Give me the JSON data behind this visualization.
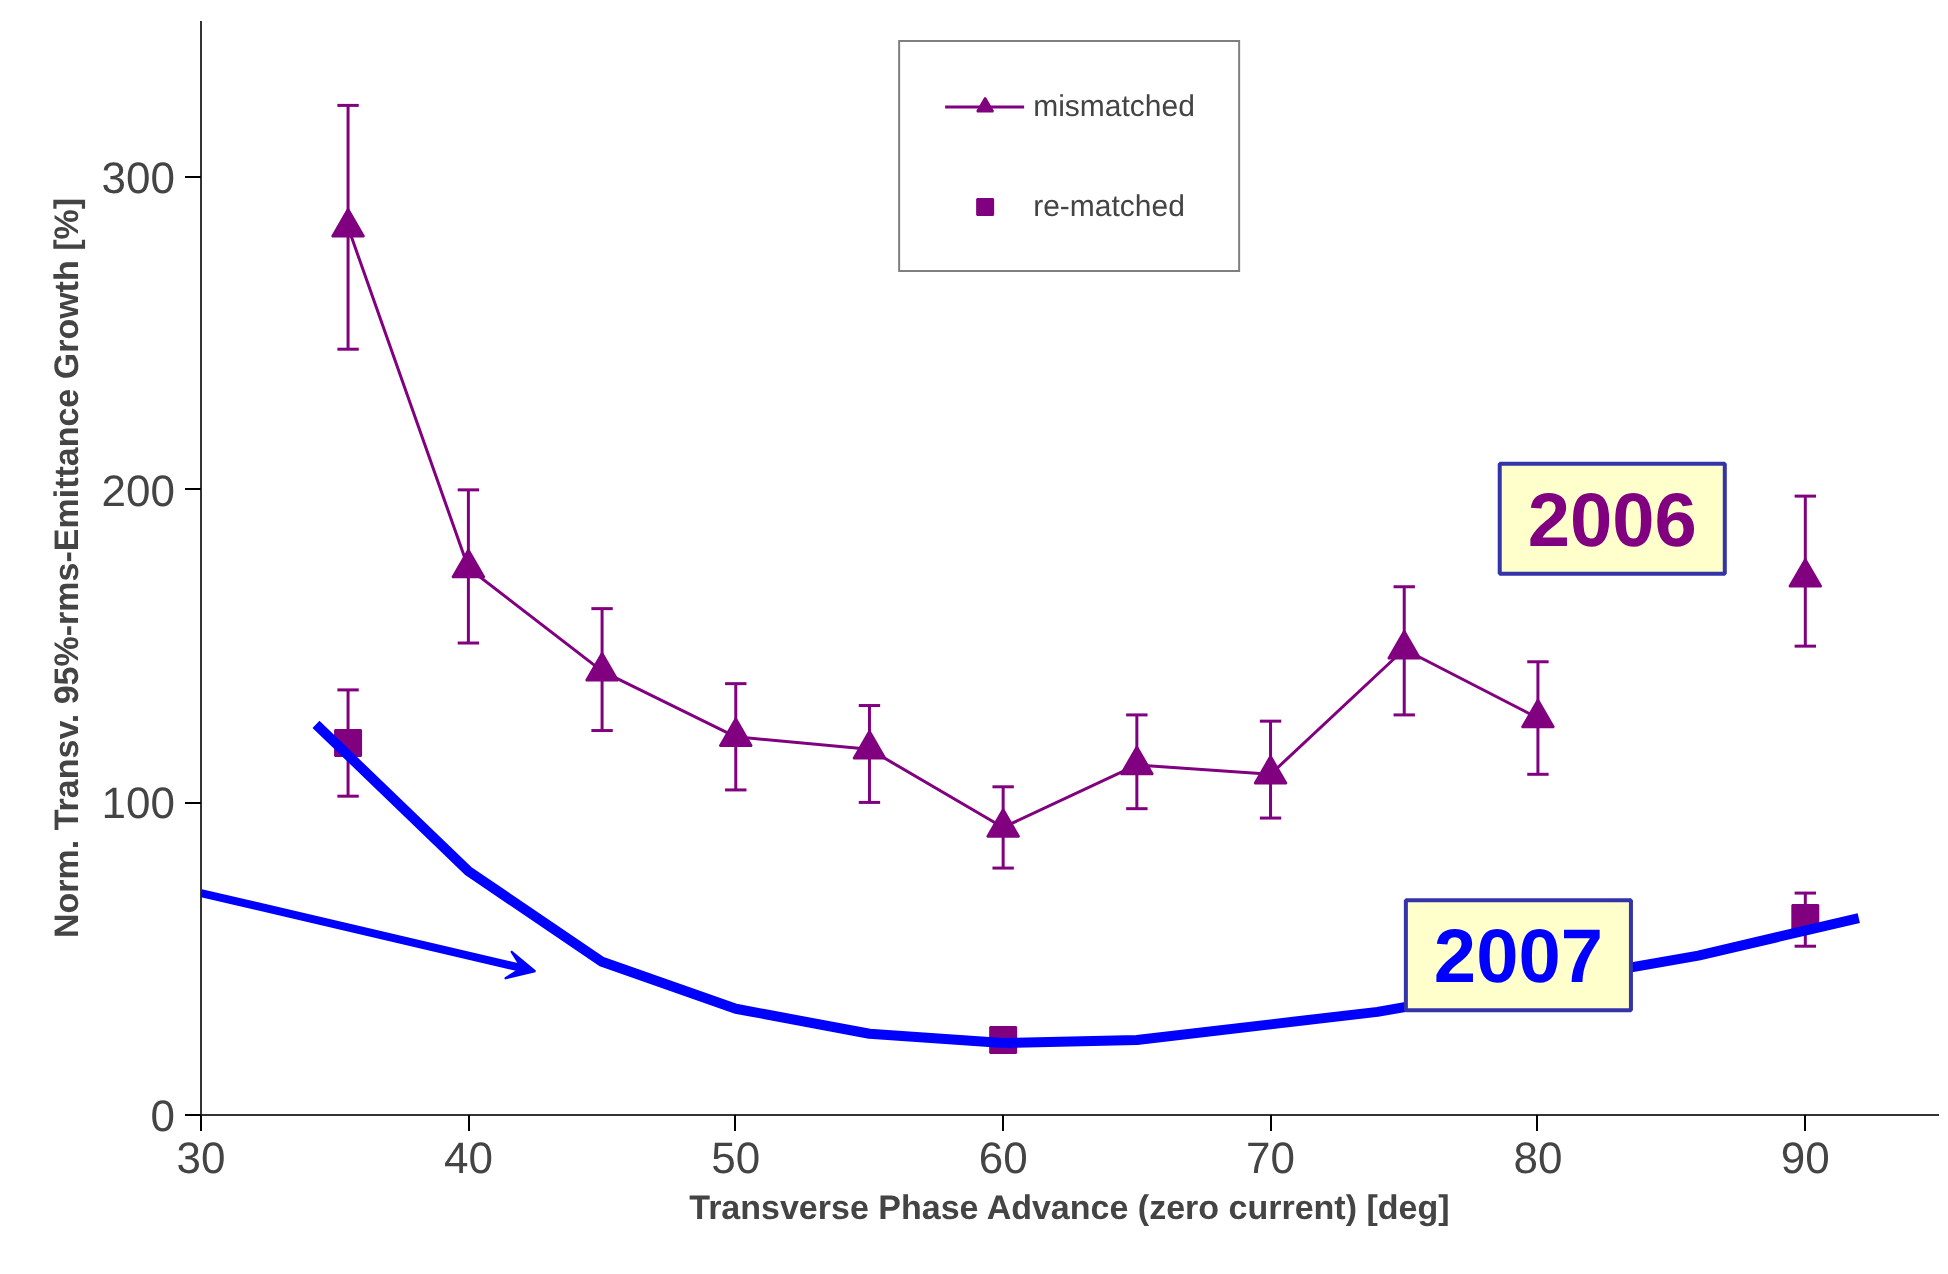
{
  "chart_data": {
    "type": "line",
    "xlabel": "Transverse Phase Advance (zero current) [deg]",
    "ylabel": "Norm. Transv. 95%-rms-Emittance Growth [%]",
    "xlim": [
      30,
      95
    ],
    "xticks": [
      30,
      40,
      50,
      60,
      70,
      80,
      90
    ],
    "ylim": [
      0,
      350
    ],
    "yticks": [
      0,
      100,
      200,
      300
    ],
    "grid": false,
    "legend": "top",
    "series": [
      {
        "name": "mismatched",
        "marker": "triangle",
        "color": "#800080",
        "x": [
          35.5,
          40,
          45,
          50,
          55,
          60,
          65,
          70,
          75,
          80,
          85,
          90
        ],
        "values": [
          284,
          175,
          142,
          121,
          117,
          92,
          112,
          109,
          149,
          127,
          null,
          172
        ],
        "errors": [
          [
            245,
            323
          ],
          [
            151,
            200
          ],
          [
            123,
            162
          ],
          [
            104,
            138
          ],
          [
            100,
            131
          ],
          [
            79,
            105
          ],
          [
            98,
            128
          ],
          [
            95,
            126
          ],
          [
            128,
            169
          ],
          [
            109,
            145
          ],
          null,
          [
            150,
            198
          ]
        ]
      },
      {
        "name": "re-matched",
        "type": "scatter",
        "marker": "square",
        "color": "#800080",
        "x": [
          35.5,
          60,
          90
        ],
        "values": [
          119,
          24,
          63
        ],
        "errors": [
          [
            102,
            136
          ],
          null,
          [
            54,
            71
          ]
        ]
      },
      {
        "marker": "none",
        "color": "#0000ff",
        "x": [
          34.3,
          40,
          45,
          50,
          55,
          60,
          65,
          70,
          74,
          86,
          92
        ],
        "values": [
          125,
          78,
          49,
          34,
          26,
          23,
          24,
          29,
          33,
          51,
          63
        ]
      }
    ],
    "annotations": [
      "2006",
      "2007"
    ]
  }
}
